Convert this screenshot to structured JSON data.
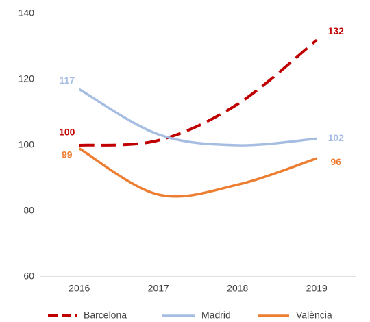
{
  "chart_data": {
    "type": "line",
    "categories": [
      "2016",
      "2017",
      "2018",
      "2019"
    ],
    "series": [
      {
        "name": "Barcelona",
        "color": "#c00000",
        "line_style": "dashed",
        "values": [
          100,
          101.5,
          112.5,
          132
        ]
      },
      {
        "name": "Madrid",
        "color": "#a6bde2",
        "line_style": "solid",
        "values": [
          117,
          103.3,
          100,
          102
        ]
      },
      {
        "name": "València",
        "color": "#ed7d31",
        "line_style": "solid",
        "values": [
          99,
          85,
          88,
          96
        ]
      }
    ],
    "ylim": [
      60,
      140
    ],
    "yticks": [
      60,
      80,
      100,
      120,
      140
    ],
    "grid": false,
    "legend": "bottom",
    "smooth": true
  }
}
